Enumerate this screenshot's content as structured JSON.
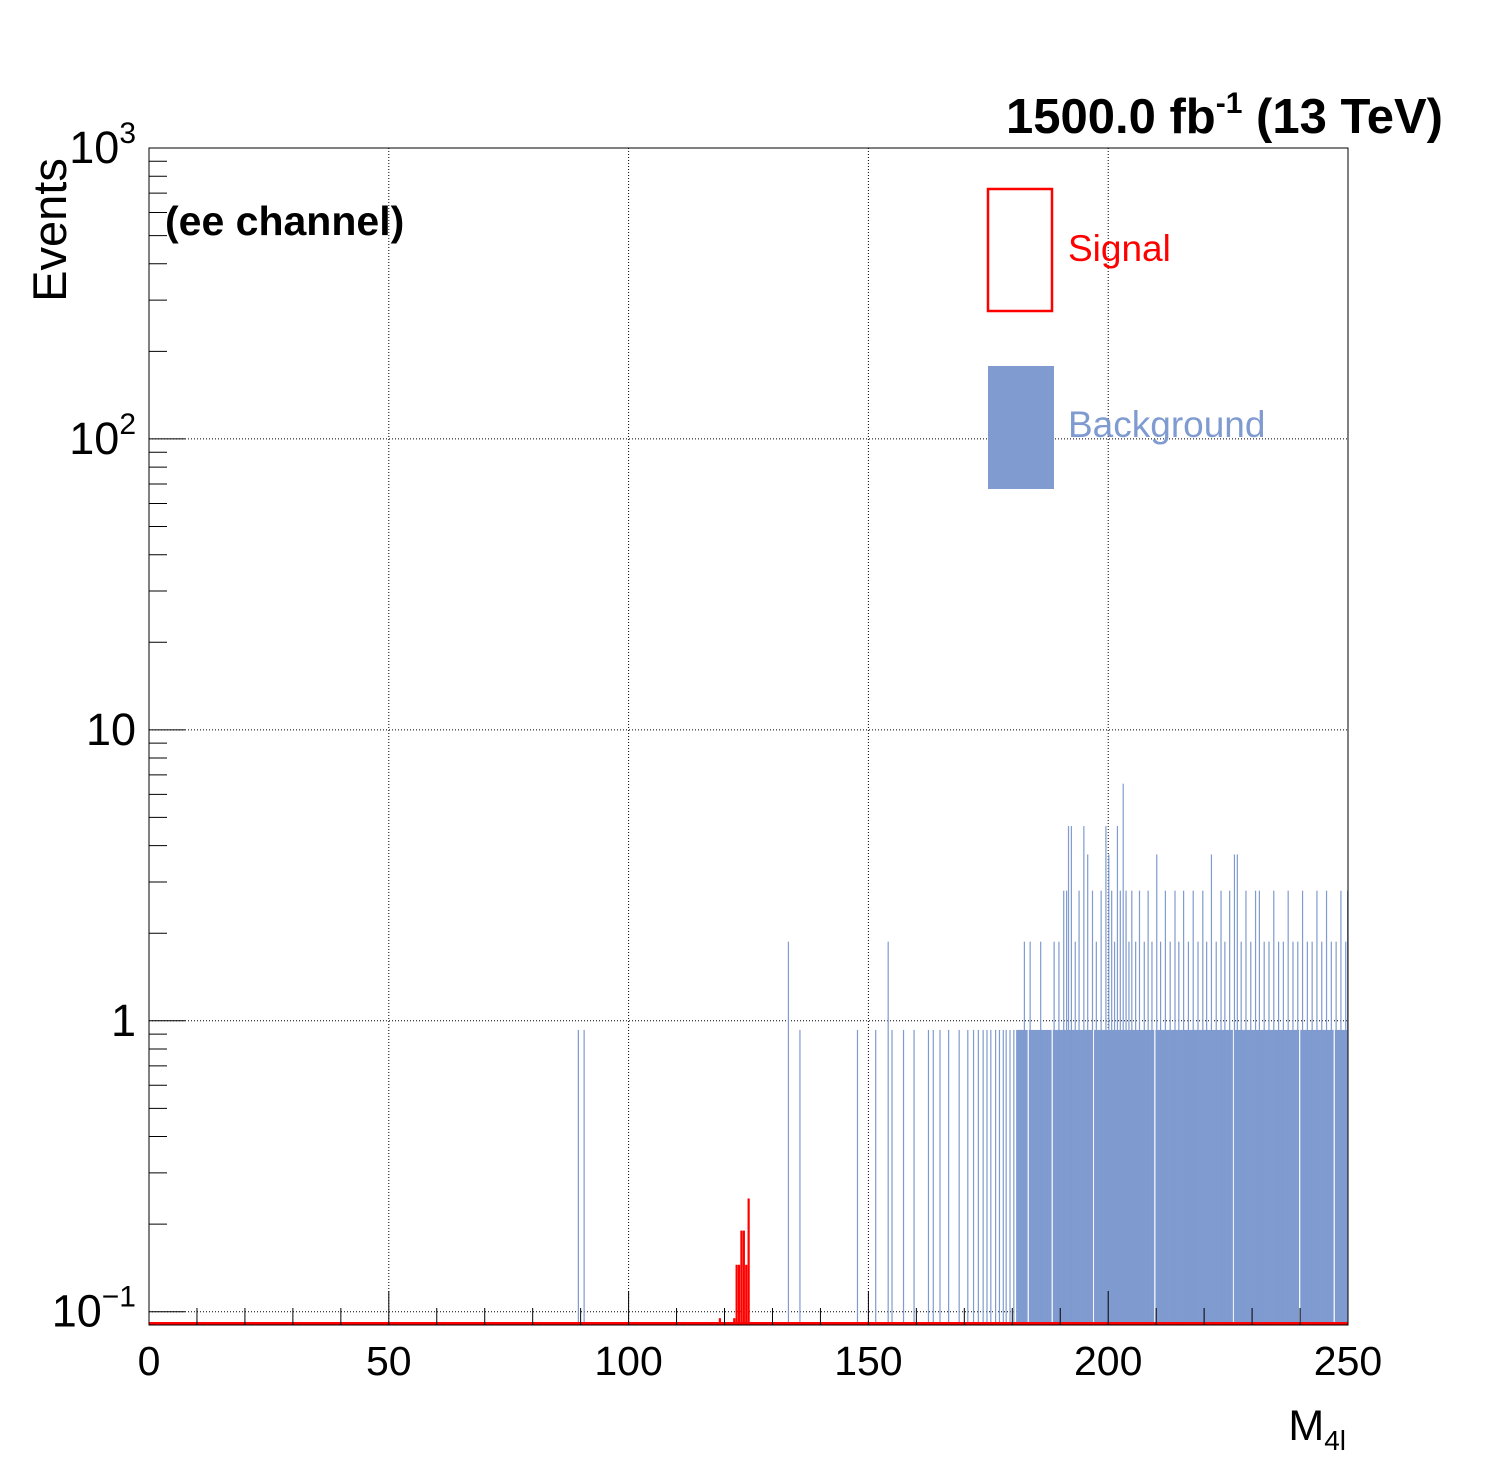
{
  "chart_data": {
    "type": "bar",
    "title": "",
    "lumi_label": {
      "value": "1500.0 fb",
      "exponent": "-1",
      "suffix": "(13 TeV)"
    },
    "channel_label": "(ee channel)",
    "xlabel": {
      "main": "M",
      "sub": "4l"
    },
    "ylabel": "Events",
    "xlim": [
      0,
      250
    ],
    "ylim": [
      0.09,
      1000
    ],
    "yscale": "log",
    "grid": true,
    "x_ticks": [
      "0",
      "50",
      "100",
      "150",
      "200",
      "250"
    ],
    "y_ticks": [
      {
        "base": "10",
        "exp": "−1"
      },
      {
        "base": "1",
        "exp": ""
      },
      {
        "base": "10",
        "exp": ""
      },
      {
        "base": "10",
        "exp": "2"
      },
      {
        "base": "10",
        "exp": "3"
      }
    ],
    "legend": {
      "position": "top-right",
      "entries": [
        {
          "label": "Signal",
          "style": "outline",
          "color": "#ff0000"
        },
        {
          "label": "Background",
          "style": "filled",
          "color": "#7f9bd0"
        }
      ]
    },
    "colors": {
      "signal": "#ff0000",
      "background": "#7f9bd0"
    },
    "series": [
      {
        "name": "Background",
        "bin_width": 0.25,
        "points": [
          [
            89.4,
            0.93
          ],
          [
            90.6,
            0.93
          ],
          [
            133.2,
            1.87
          ],
          [
            135.6,
            0.93
          ],
          [
            147.6,
            0.93
          ],
          [
            151.4,
            0.93
          ],
          [
            154.0,
            1.87
          ],
          [
            154.8,
            0.93
          ],
          [
            157.2,
            0.93
          ],
          [
            159.4,
            0.93
          ],
          [
            162.4,
            0.93
          ],
          [
            163.4,
            0.93
          ],
          [
            164.8,
            0.93
          ],
          [
            166.6,
            0.93
          ],
          [
            168.8,
            0.93
          ],
          [
            170.6,
            0.93
          ],
          [
            171.8,
            0.93
          ],
          [
            172.8,
            0.93
          ],
          [
            173.8,
            0.93
          ],
          [
            174.6,
            0.93
          ],
          [
            175.4,
            0.93
          ],
          [
            176.4,
            0.93
          ],
          [
            177.2,
            0.93
          ],
          [
            178.0,
            0.93
          ],
          [
            178.6,
            0.93
          ],
          [
            179.4,
            0.93
          ],
          [
            180.2,
            0.93
          ],
          [
            180.8,
            0.93
          ],
          [
            181.4,
            0.93
          ],
          [
            182.4,
            1.87
          ],
          [
            183.6,
            1.87
          ],
          [
            184.8,
            0.93
          ],
          [
            185.8,
            1.87
          ],
          [
            187.2,
            0.93
          ],
          [
            188.6,
            1.87
          ],
          [
            189.6,
            1.87
          ],
          [
            190.6,
            2.8
          ],
          [
            191.2,
            2.8
          ],
          [
            191.6,
            4.67
          ],
          [
            192.2,
            4.67
          ],
          [
            193.0,
            1.87
          ],
          [
            193.8,
            2.8
          ],
          [
            194.8,
            4.67
          ],
          [
            195.6,
            3.73
          ],
          [
            196.6,
            2.8
          ],
          [
            197.4,
            1.87
          ],
          [
            198.4,
            2.8
          ],
          [
            199.4,
            4.67
          ],
          [
            200.0,
            3.73
          ],
          [
            200.6,
            2.8
          ],
          [
            201.2,
            1.87
          ],
          [
            201.8,
            4.67
          ],
          [
            202.4,
            2.8
          ],
          [
            203.0,
            6.53
          ],
          [
            203.6,
            2.8
          ],
          [
            204.2,
            1.87
          ],
          [
            204.8,
            2.8
          ],
          [
            205.6,
            1.87
          ],
          [
            206.4,
            2.8
          ],
          [
            207.4,
            1.87
          ],
          [
            208.2,
            2.8
          ],
          [
            209.0,
            1.87
          ],
          [
            210.0,
            3.73
          ],
          [
            210.8,
            1.87
          ],
          [
            211.8,
            2.8
          ],
          [
            212.8,
            1.87
          ],
          [
            213.8,
            2.8
          ],
          [
            214.6,
            1.87
          ],
          [
            215.6,
            2.8
          ],
          [
            216.6,
            1.87
          ],
          [
            217.6,
            2.8
          ],
          [
            218.6,
            1.87
          ],
          [
            219.6,
            2.8
          ],
          [
            220.4,
            1.87
          ],
          [
            221.4,
            3.73
          ],
          [
            222.4,
            1.87
          ],
          [
            223.4,
            2.8
          ],
          [
            224.2,
            1.87
          ],
          [
            225.2,
            2.8
          ],
          [
            226.2,
            3.73
          ],
          [
            226.8,
            3.73
          ],
          [
            227.6,
            1.87
          ],
          [
            228.6,
            2.8
          ],
          [
            229.6,
            1.87
          ],
          [
            230.6,
            2.8
          ],
          [
            231.4,
            2.8
          ],
          [
            232.4,
            1.87
          ],
          [
            233.4,
            1.87
          ],
          [
            234.4,
            2.8
          ],
          [
            235.4,
            1.87
          ],
          [
            236.4,
            1.87
          ],
          [
            237.4,
            2.8
          ],
          [
            238.4,
            1.87
          ],
          [
            239.4,
            1.87
          ],
          [
            240.4,
            2.8
          ],
          [
            241.4,
            1.87
          ],
          [
            242.4,
            1.87
          ],
          [
            243.4,
            2.8
          ],
          [
            244.4,
            1.87
          ],
          [
            245.4,
            2.8
          ],
          [
            246.4,
            1.87
          ],
          [
            247.4,
            1.87
          ],
          [
            248.4,
            2.8
          ],
          [
            249.4,
            1.87
          ],
          [
            249.8,
            2.8
          ]
        ],
        "dense_band": {
          "from": 181.0,
          "to": 249.9,
          "value": 0.93,
          "gaps": [
            183.2,
            188.2,
            196.8,
            209.6,
            226.0,
            239.8,
            247.0
          ]
        }
      },
      {
        "name": "Signal",
        "bin_width": 0.25,
        "points": [
          [
            118.8,
            0.095
          ],
          [
            121.8,
            0.095
          ],
          [
            122.3,
            0.145
          ],
          [
            122.8,
            0.145
          ],
          [
            123.3,
            0.19
          ],
          [
            123.8,
            0.19
          ],
          [
            124.3,
            0.145
          ],
          [
            124.8,
            0.245
          ]
        ]
      }
    ]
  }
}
